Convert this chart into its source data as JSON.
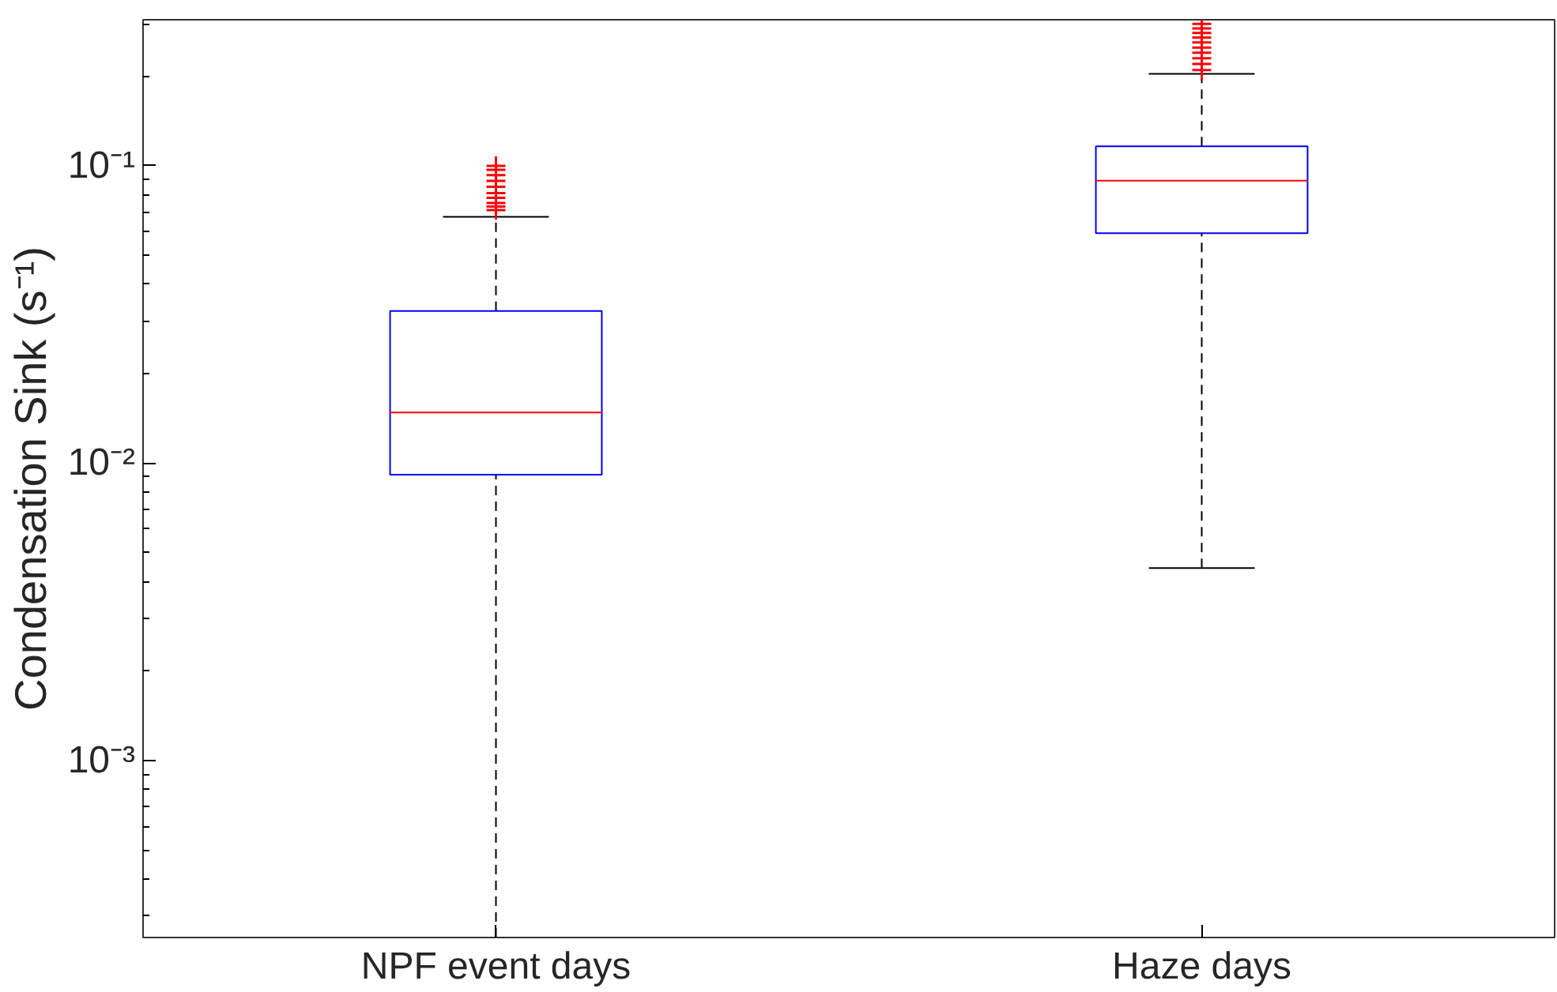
{
  "chart_data": {
    "type": "box",
    "ylabel": "Condensation Sink (s⁻¹)",
    "categories": [
      "NPF event days",
      "Haze days"
    ],
    "log": "y",
    "ylim": [
      0.000254,
      0.31
    ],
    "yticks": [
      {
        "value": 0.001,
        "label": "10⁻³"
      },
      {
        "value": 0.01,
        "label": "10⁻²"
      },
      {
        "value": 0.1,
        "label": "10⁻¹"
      }
    ],
    "grid": false,
    "marker": "cross",
    "boxes": [
      {
        "low": 0.000254,
        "q1": 0.00915,
        "median": 0.0148,
        "q3": 0.0325,
        "high": 0.0674,
        "outliers": [
          0.071,
          0.073,
          0.075,
          0.078,
          0.081,
          0.085,
          0.089,
          0.093,
          0.097,
          0.1
        ]
      },
      {
        "low": 0.00444,
        "q1": 0.0594,
        "median": 0.0892,
        "q3": 0.1164,
        "high": 0.204,
        "outliers": [
          0.21,
          0.22,
          0.23,
          0.24,
          0.25,
          0.26,
          0.27,
          0.28,
          0.29,
          0.3
        ]
      }
    ]
  }
}
